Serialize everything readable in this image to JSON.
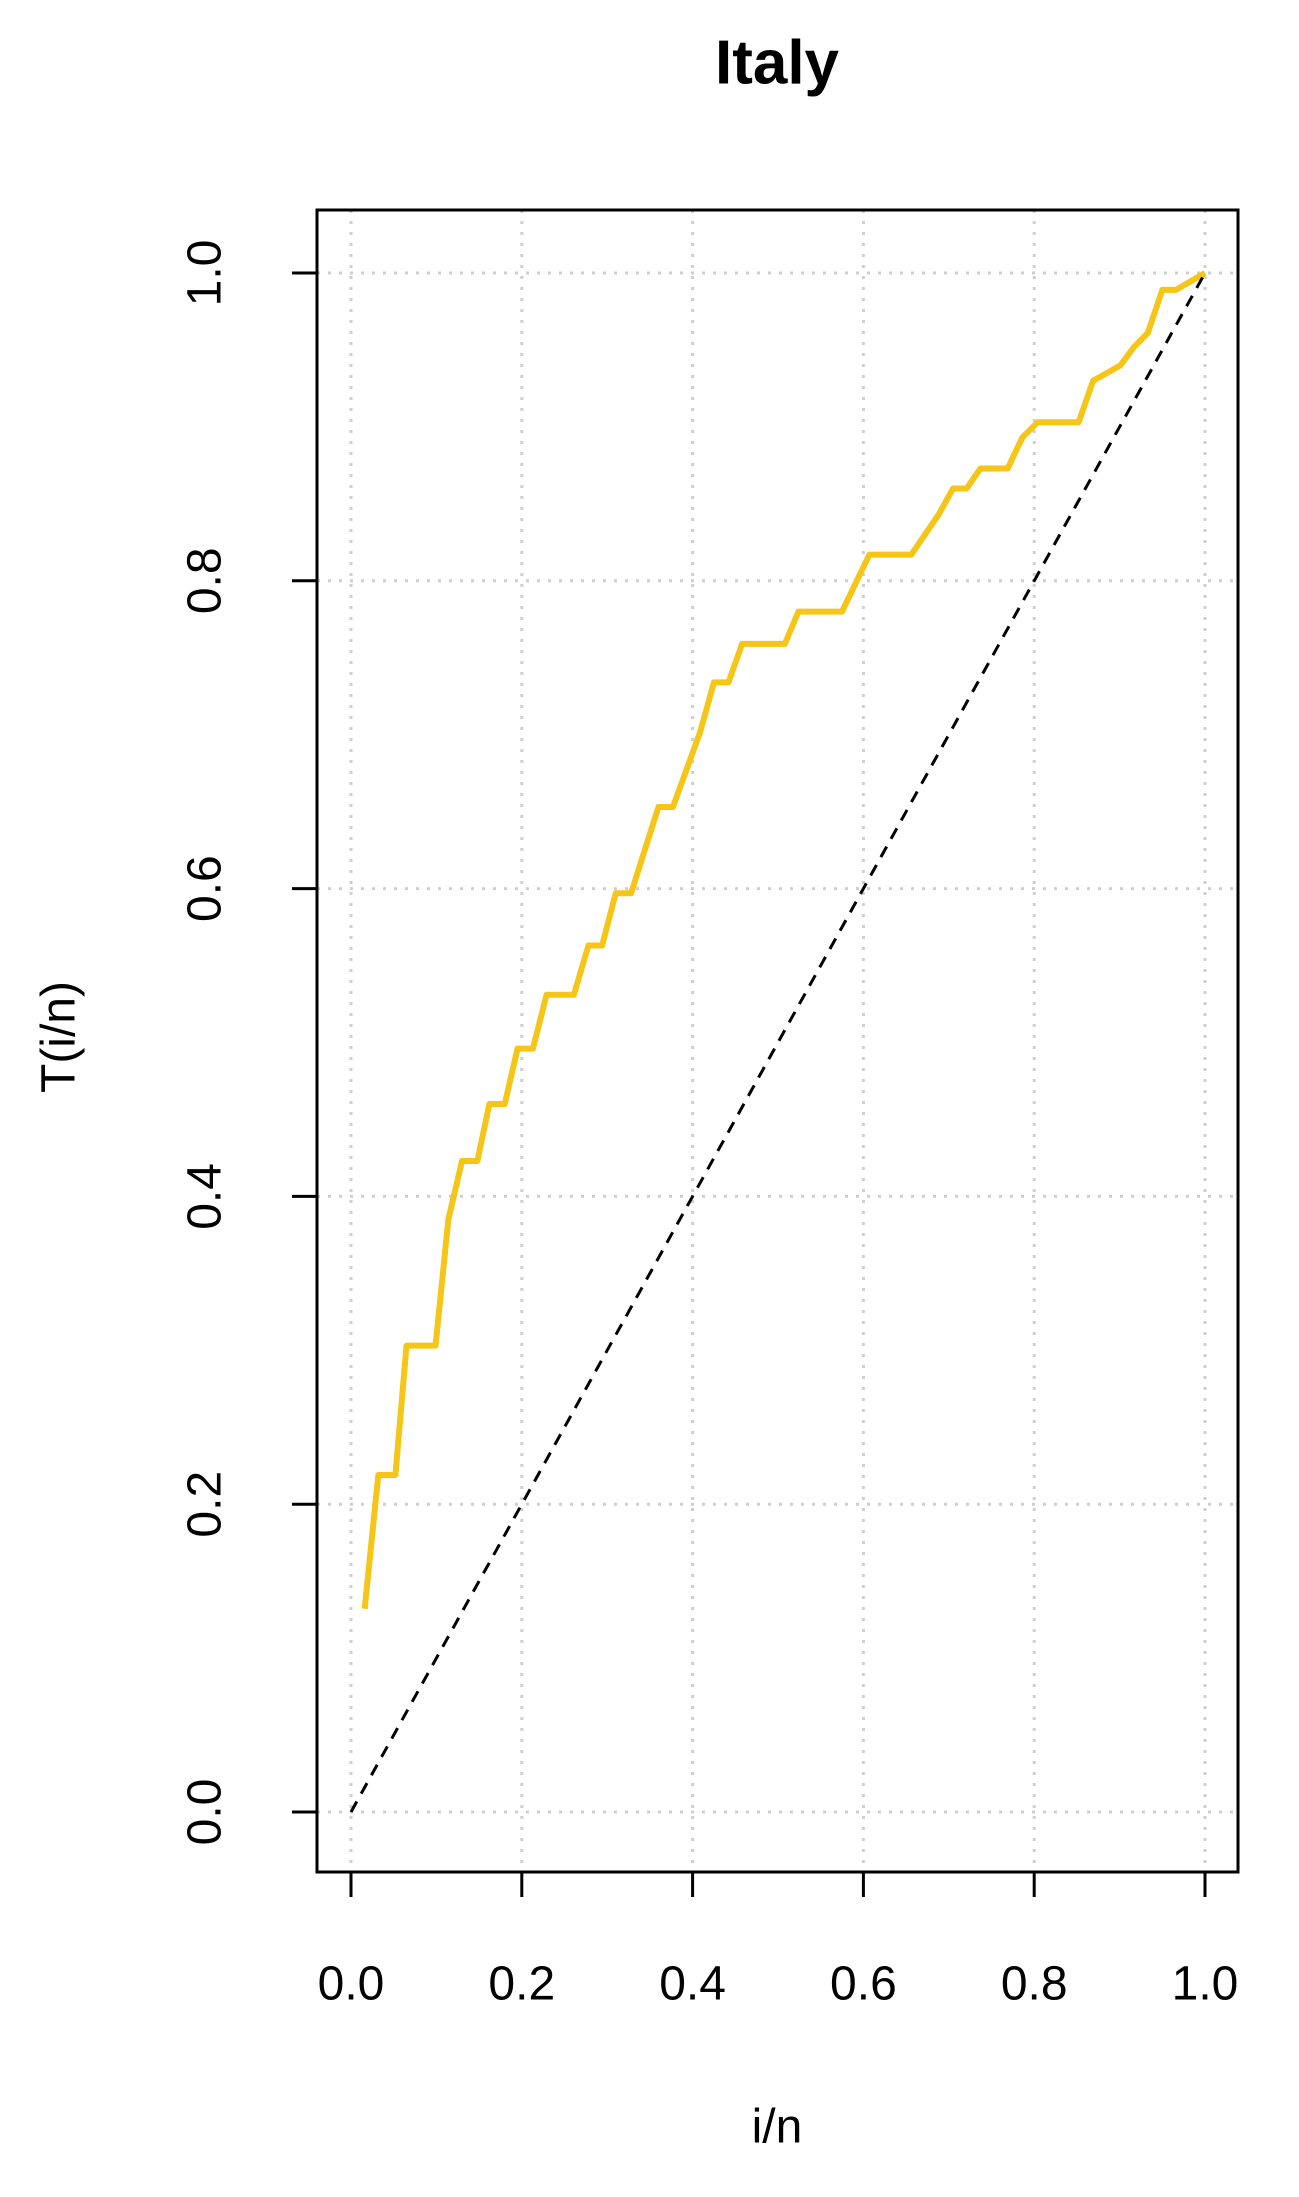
{
  "chart_data": {
    "type": "line",
    "title": "Italy",
    "x_label": "i/n",
    "y_label": "T(i/n)",
    "xlim": [
      0,
      1
    ],
    "ylim": [
      0,
      1
    ],
    "xticks": [
      {
        "value": 0,
        "label": "0.0"
      },
      0.2,
      0.4,
      0.6,
      0.8,
      {
        "value": 1,
        "label": "1.0"
      }
    ],
    "yticks": [
      {
        "value": 0,
        "label": "0.0"
      },
      0.2,
      0.4,
      0.6,
      0.8,
      {
        "value": 1,
        "label": "1.0"
      }
    ],
    "grid": true,
    "series": [
      {
        "color": "#f5c518",
        "dash": false,
        "x": [
          0.016,
          0.032,
          0.052,
          0.065,
          0.099,
          0.114,
          0.13,
          0.148,
          0.162,
          0.18,
          0.195,
          0.213,
          0.229,
          0.261,
          0.278,
          0.294,
          0.31,
          0.328,
          0.36,
          0.377,
          0.409,
          0.425,
          0.442,
          0.458,
          0.508,
          0.524,
          0.575,
          0.607,
          0.656,
          0.688,
          0.705,
          0.721,
          0.737,
          0.769,
          0.786,
          0.804,
          0.852,
          0.869,
          0.901,
          0.917,
          0.933,
          0.95,
          0.966,
          1
        ],
        "values": [
          0.132,
          0.219,
          0.219,
          0.303,
          0.303,
          0.385,
          0.423,
          0.423,
          0.46,
          0.46,
          0.496,
          0.496,
          0.531,
          0.531,
          0.563,
          0.563,
          0.597,
          0.597,
          0.653,
          0.653,
          0.702,
          0.734,
          0.734,
          0.759,
          0.759,
          0.78,
          0.78,
          0.817,
          0.817,
          0.843,
          0.86,
          0.86,
          0.873,
          0.873,
          0.893,
          0.903,
          0.903,
          0.93,
          0.94,
          0.952,
          0.961,
          0.989,
          0.989,
          1
        ]
      },
      {
        "color": "#000000",
        "dash": true,
        "x": [
          0,
          1
        ],
        "values": [
          0,
          1
        ]
      }
    ]
  }
}
